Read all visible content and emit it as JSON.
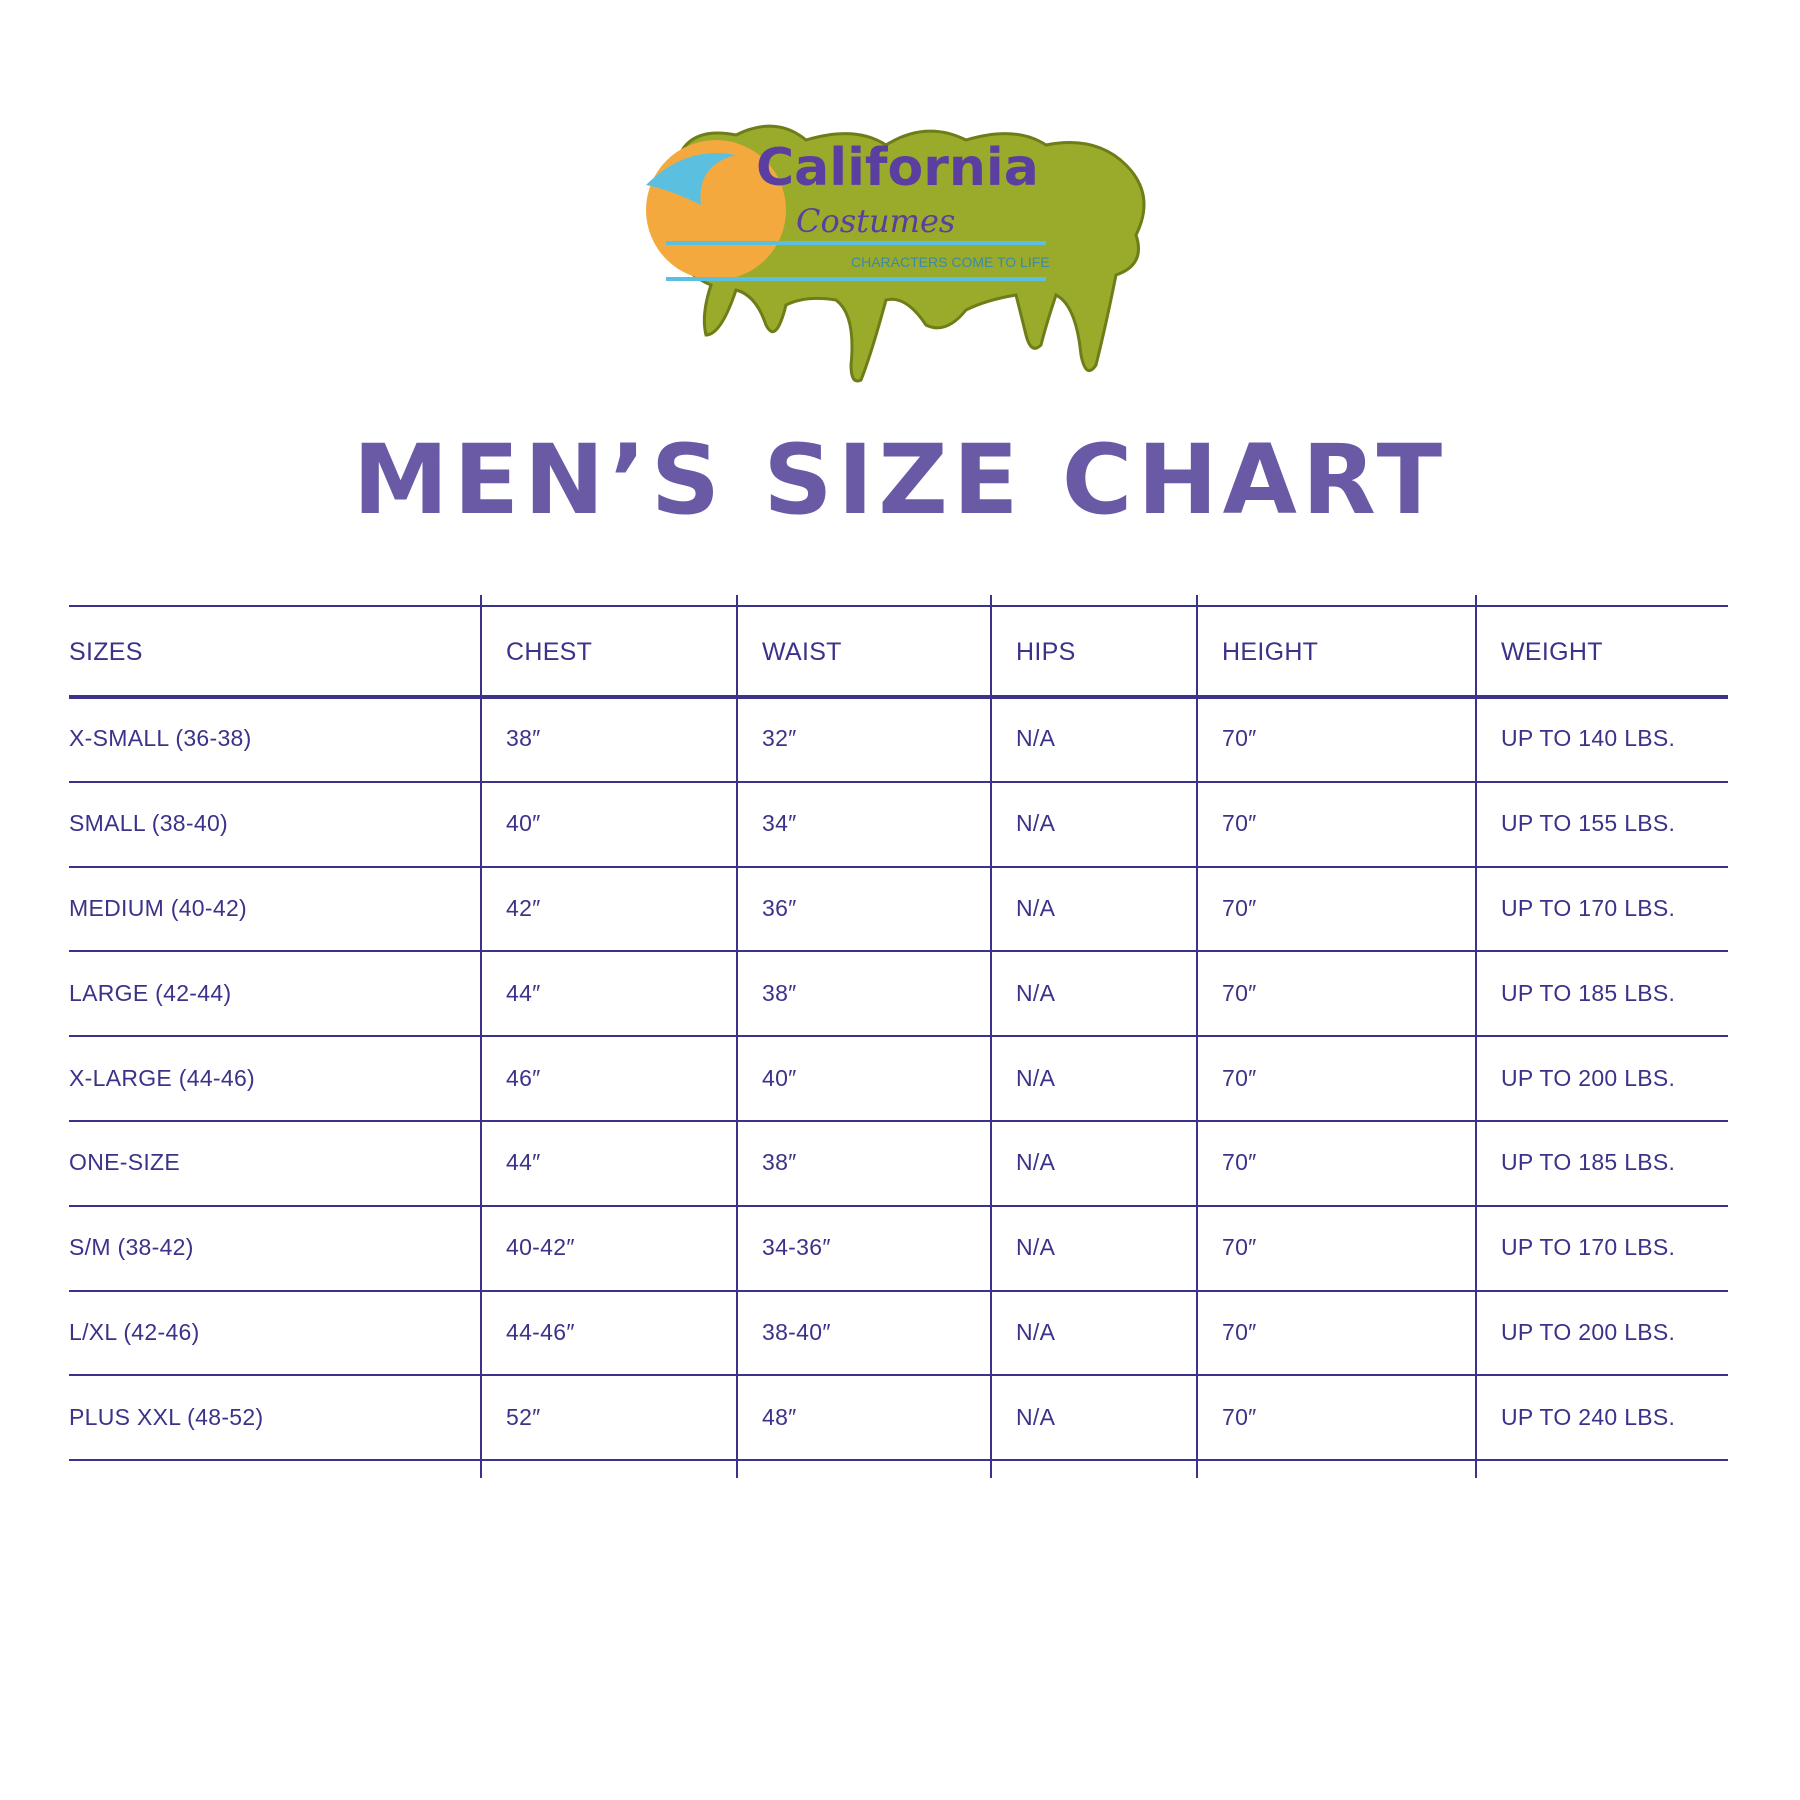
{
  "logo": {
    "brand": "California",
    "brand2": "Costumes",
    "tagline": "CHARACTERS COME TO LIFE"
  },
  "title": "MEN’S SIZE CHART",
  "colors": {
    "title": "#6a5aa6",
    "table_text": "#3b3389",
    "slime": "#9aaa2a",
    "sun": "#f4a93f"
  },
  "table": {
    "headers": [
      "SIZES",
      "CHEST",
      "WAIST",
      "HIPS",
      "HEIGHT",
      "WEIGHT"
    ],
    "rows": [
      [
        "X-SMALL (36-38)",
        "38″",
        "32″",
        "N/A",
        "70″",
        "UP TO 140 LBS."
      ],
      [
        "SMALL (38-40)",
        "40″",
        "34″",
        "N/A",
        "70″",
        "UP TO 155 LBS."
      ],
      [
        "MEDIUM (40-42)",
        "42″",
        "36″",
        "N/A",
        "70″",
        "UP TO 170 LBS."
      ],
      [
        "LARGE (42-44)",
        "44″",
        "38″",
        "N/A",
        "70″",
        "UP TO 185 LBS."
      ],
      [
        "X-LARGE (44-46)",
        "46″",
        "40″",
        "N/A",
        "70″",
        "UP TO 200 LBS."
      ],
      [
        "ONE-SIZE",
        "44″",
        "38″",
        "N/A",
        "70″",
        "UP TO 185 LBS."
      ],
      [
        "S/M (38-42)",
        "40-42″",
        "34-36″",
        "N/A",
        "70″",
        "UP TO 170 LBS."
      ],
      [
        "L/XL (42-46)",
        "44-46″",
        "38-40″",
        "N/A",
        "70″",
        "UP TO 200 LBS."
      ],
      [
        "PLUS XXL (48-52)",
        "52″",
        "48″",
        "N/A",
        "70″",
        "UP TO 240 LBS."
      ]
    ]
  }
}
